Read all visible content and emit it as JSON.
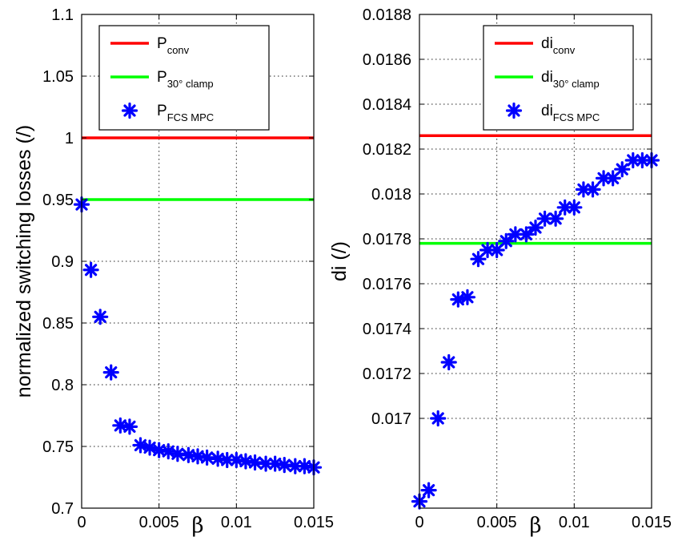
{
  "chart_data": [
    {
      "type": "scatter",
      "xlabel": "β",
      "ylabel": "normalized switching losses (/)",
      "xlim": [
        0,
        0.015
      ],
      "ylim": [
        0.7,
        1.1
      ],
      "xticks": [
        "0",
        "0.005",
        "0.01",
        "0.015"
      ],
      "yticks": [
        "0.7",
        "0.75",
        "0.8",
        "0.85",
        "0.9",
        "0.95",
        "1",
        "1.05",
        "1.1"
      ],
      "grid": true,
      "legend_position": "top-center",
      "series": [
        {
          "name": "P",
          "name_sub": "conv",
          "kind": "hline",
          "color": "#ff0000",
          "y": 1.0
        },
        {
          "name": "P",
          "name_sub": "30° clamp",
          "kind": "hline",
          "color": "#00ff00",
          "y": 0.95
        },
        {
          "name": "P",
          "name_sub": "FCS MPC",
          "kind": "markers",
          "color": "#0000ff",
          "x": [
            0,
            0.0006,
            0.0012,
            0.0019,
            0.0025,
            0.0031,
            0.0038,
            0.0044,
            0.005,
            0.0056,
            0.0062,
            0.0069,
            0.0075,
            0.0081,
            0.0088,
            0.0094,
            0.01,
            0.0106,
            0.0112,
            0.0119,
            0.0125,
            0.0131,
            0.0138,
            0.0144,
            0.015
          ],
          "y": [
            0.946,
            0.893,
            0.855,
            0.81,
            0.767,
            0.766,
            0.751,
            0.749,
            0.747,
            0.746,
            0.744,
            0.743,
            0.742,
            0.741,
            0.74,
            0.739,
            0.739,
            0.738,
            0.737,
            0.736,
            0.736,
            0.735,
            0.734,
            0.734,
            0.733
          ]
        }
      ]
    },
    {
      "type": "scatter",
      "xlabel": "β",
      "ylabel": "di (/)",
      "xlim": [
        0,
        0.015
      ],
      "ylim": [
        0.0166,
        0.0188
      ],
      "xticks": [
        "0",
        "0.005",
        "0.01",
        "0.015"
      ],
      "yticks": [
        "0.017",
        "0.0172",
        "0.0174",
        "0.0176",
        "0.0178",
        "0.018",
        "0.0182",
        "0.0184",
        "0.0186",
        "0.0188"
      ],
      "grid": true,
      "legend_position": "top-right",
      "series": [
        {
          "name": "di",
          "name_sub": "conv",
          "kind": "hline",
          "color": "#ff0000",
          "y": 0.01826
        },
        {
          "name": "di",
          "name_sub": "30° clamp",
          "kind": "hline",
          "color": "#00ff00",
          "y": 0.01778
        },
        {
          "name": "di",
          "name_sub": "FCS MPC",
          "kind": "markers",
          "color": "#0000ff",
          "x": [
            0,
            0.0006,
            0.0012,
            0.0019,
            0.0025,
            0.0031,
            0.0038,
            0.0044,
            0.005,
            0.0056,
            0.0062,
            0.0069,
            0.0075,
            0.0081,
            0.0088,
            0.0094,
            0.01,
            0.0106,
            0.0112,
            0.0119,
            0.0125,
            0.0131,
            0.0138,
            0.0144,
            0.015
          ],
          "y": [
            0.01663,
            0.01668,
            0.017,
            0.01725,
            0.01753,
            0.01754,
            0.01771,
            0.01775,
            0.01775,
            0.01779,
            0.01782,
            0.01782,
            0.01785,
            0.01789,
            0.01789,
            0.01794,
            0.01794,
            0.01802,
            0.01802,
            0.01807,
            0.01807,
            0.01811,
            0.01815,
            0.01815,
            0.01815
          ]
        }
      ]
    }
  ]
}
